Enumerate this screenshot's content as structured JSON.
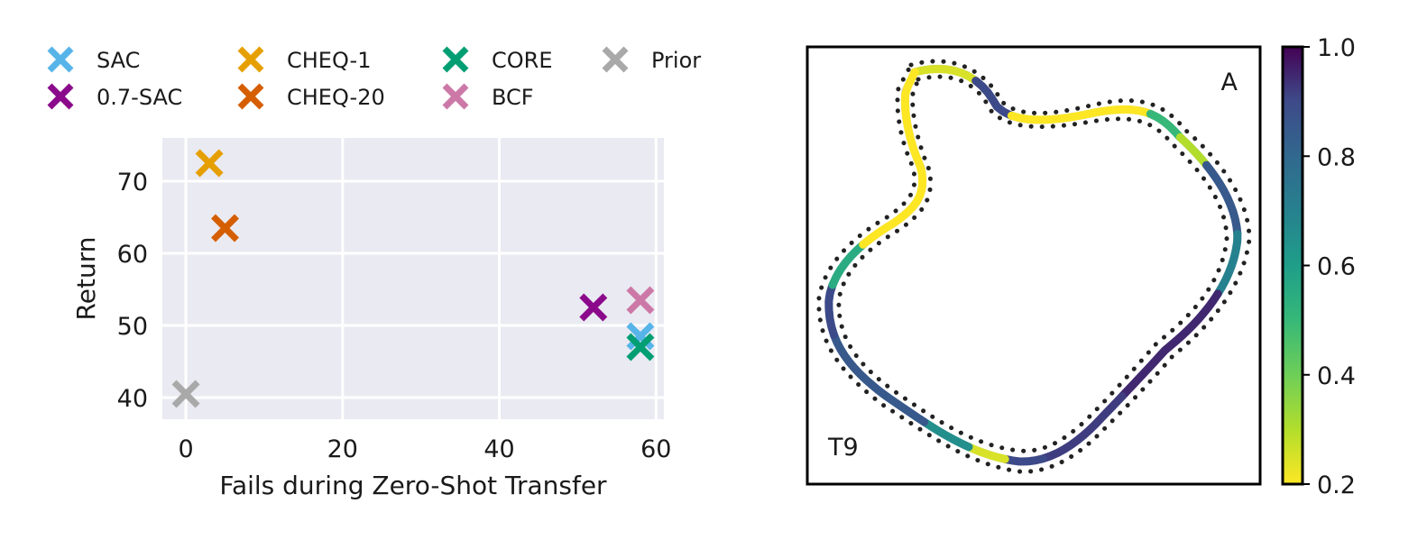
{
  "chart_data": [
    {
      "type": "scatter",
      "title": "",
      "xlabel": "Fails during Zero-Shot Transfer",
      "ylabel": "Return",
      "xlim": [
        -3,
        61
      ],
      "ylim": [
        37,
        76
      ],
      "xticks": [
        0,
        20,
        40,
        60
      ],
      "yticks": [
        40,
        50,
        60,
        70
      ],
      "grid": true,
      "marker": "x",
      "legend_placement": "top",
      "series": [
        {
          "name": "SAC",
          "color": "#56b4e9",
          "x": [
            58
          ],
          "y": [
            48.5
          ]
        },
        {
          "name": "0.7-SAC",
          "color": "#8b0a8b",
          "x": [
            52
          ],
          "y": [
            52.5
          ]
        },
        {
          "name": "CHEQ-1",
          "color": "#e69f00",
          "x": [
            3
          ],
          "y": [
            72.5
          ]
        },
        {
          "name": "CHEQ-20",
          "color": "#d55e00",
          "x": [
            5
          ],
          "y": [
            63.5
          ]
        },
        {
          "name": "CORE",
          "color": "#009e73",
          "x": [
            58
          ],
          "y": [
            47
          ]
        },
        {
          "name": "BCF",
          "color": "#cc79a7",
          "x": [
            58
          ],
          "y": [
            53.5
          ]
        },
        {
          "name": "Prior",
          "color": "#a9a9a9",
          "x": [
            0
          ],
          "y": [
            40.5
          ]
        }
      ]
    },
    {
      "type": "heatmap",
      "title": "",
      "corner_labels": {
        "top_right": "A",
        "bottom_left": "T9"
      },
      "colorbar": {
        "range": [
          0.2,
          1.0
        ],
        "ticks": [
          "1.0",
          "0.8",
          "0.6",
          "0.4",
          "0.2"
        ],
        "tick_values": [
          1.0,
          0.8,
          0.6,
          0.4,
          0.2
        ],
        "colormap": "viridis"
      },
      "track_segments": [
        {
          "from": 0.0,
          "to": 0.05,
          "value": 0.25
        },
        {
          "from": 0.05,
          "to": 0.09,
          "value": 0.9
        },
        {
          "from": 0.09,
          "to": 0.2,
          "value": 0.2
        },
        {
          "from": 0.2,
          "to": 0.23,
          "value": 0.5
        },
        {
          "from": 0.23,
          "to": 0.26,
          "value": 0.3
        },
        {
          "from": 0.26,
          "to": 0.32,
          "value": 0.85
        },
        {
          "from": 0.32,
          "to": 0.37,
          "value": 0.7
        },
        {
          "from": 0.37,
          "to": 0.48,
          "value": 0.95
        },
        {
          "from": 0.48,
          "to": 0.56,
          "value": 0.92
        },
        {
          "from": 0.56,
          "to": 0.59,
          "value": 0.9
        },
        {
          "from": 0.59,
          "to": 0.62,
          "value": 0.25
        },
        {
          "from": 0.62,
          "to": 0.66,
          "value": 0.65
        },
        {
          "from": 0.66,
          "to": 0.76,
          "value": 0.85
        },
        {
          "from": 0.76,
          "to": 0.8,
          "value": 0.9
        },
        {
          "from": 0.8,
          "to": 0.84,
          "value": 0.55
        },
        {
          "from": 0.84,
          "to": 0.9,
          "value": 0.2
        },
        {
          "from": 0.9,
          "to": 1.0,
          "value": 0.2
        }
      ]
    }
  ]
}
